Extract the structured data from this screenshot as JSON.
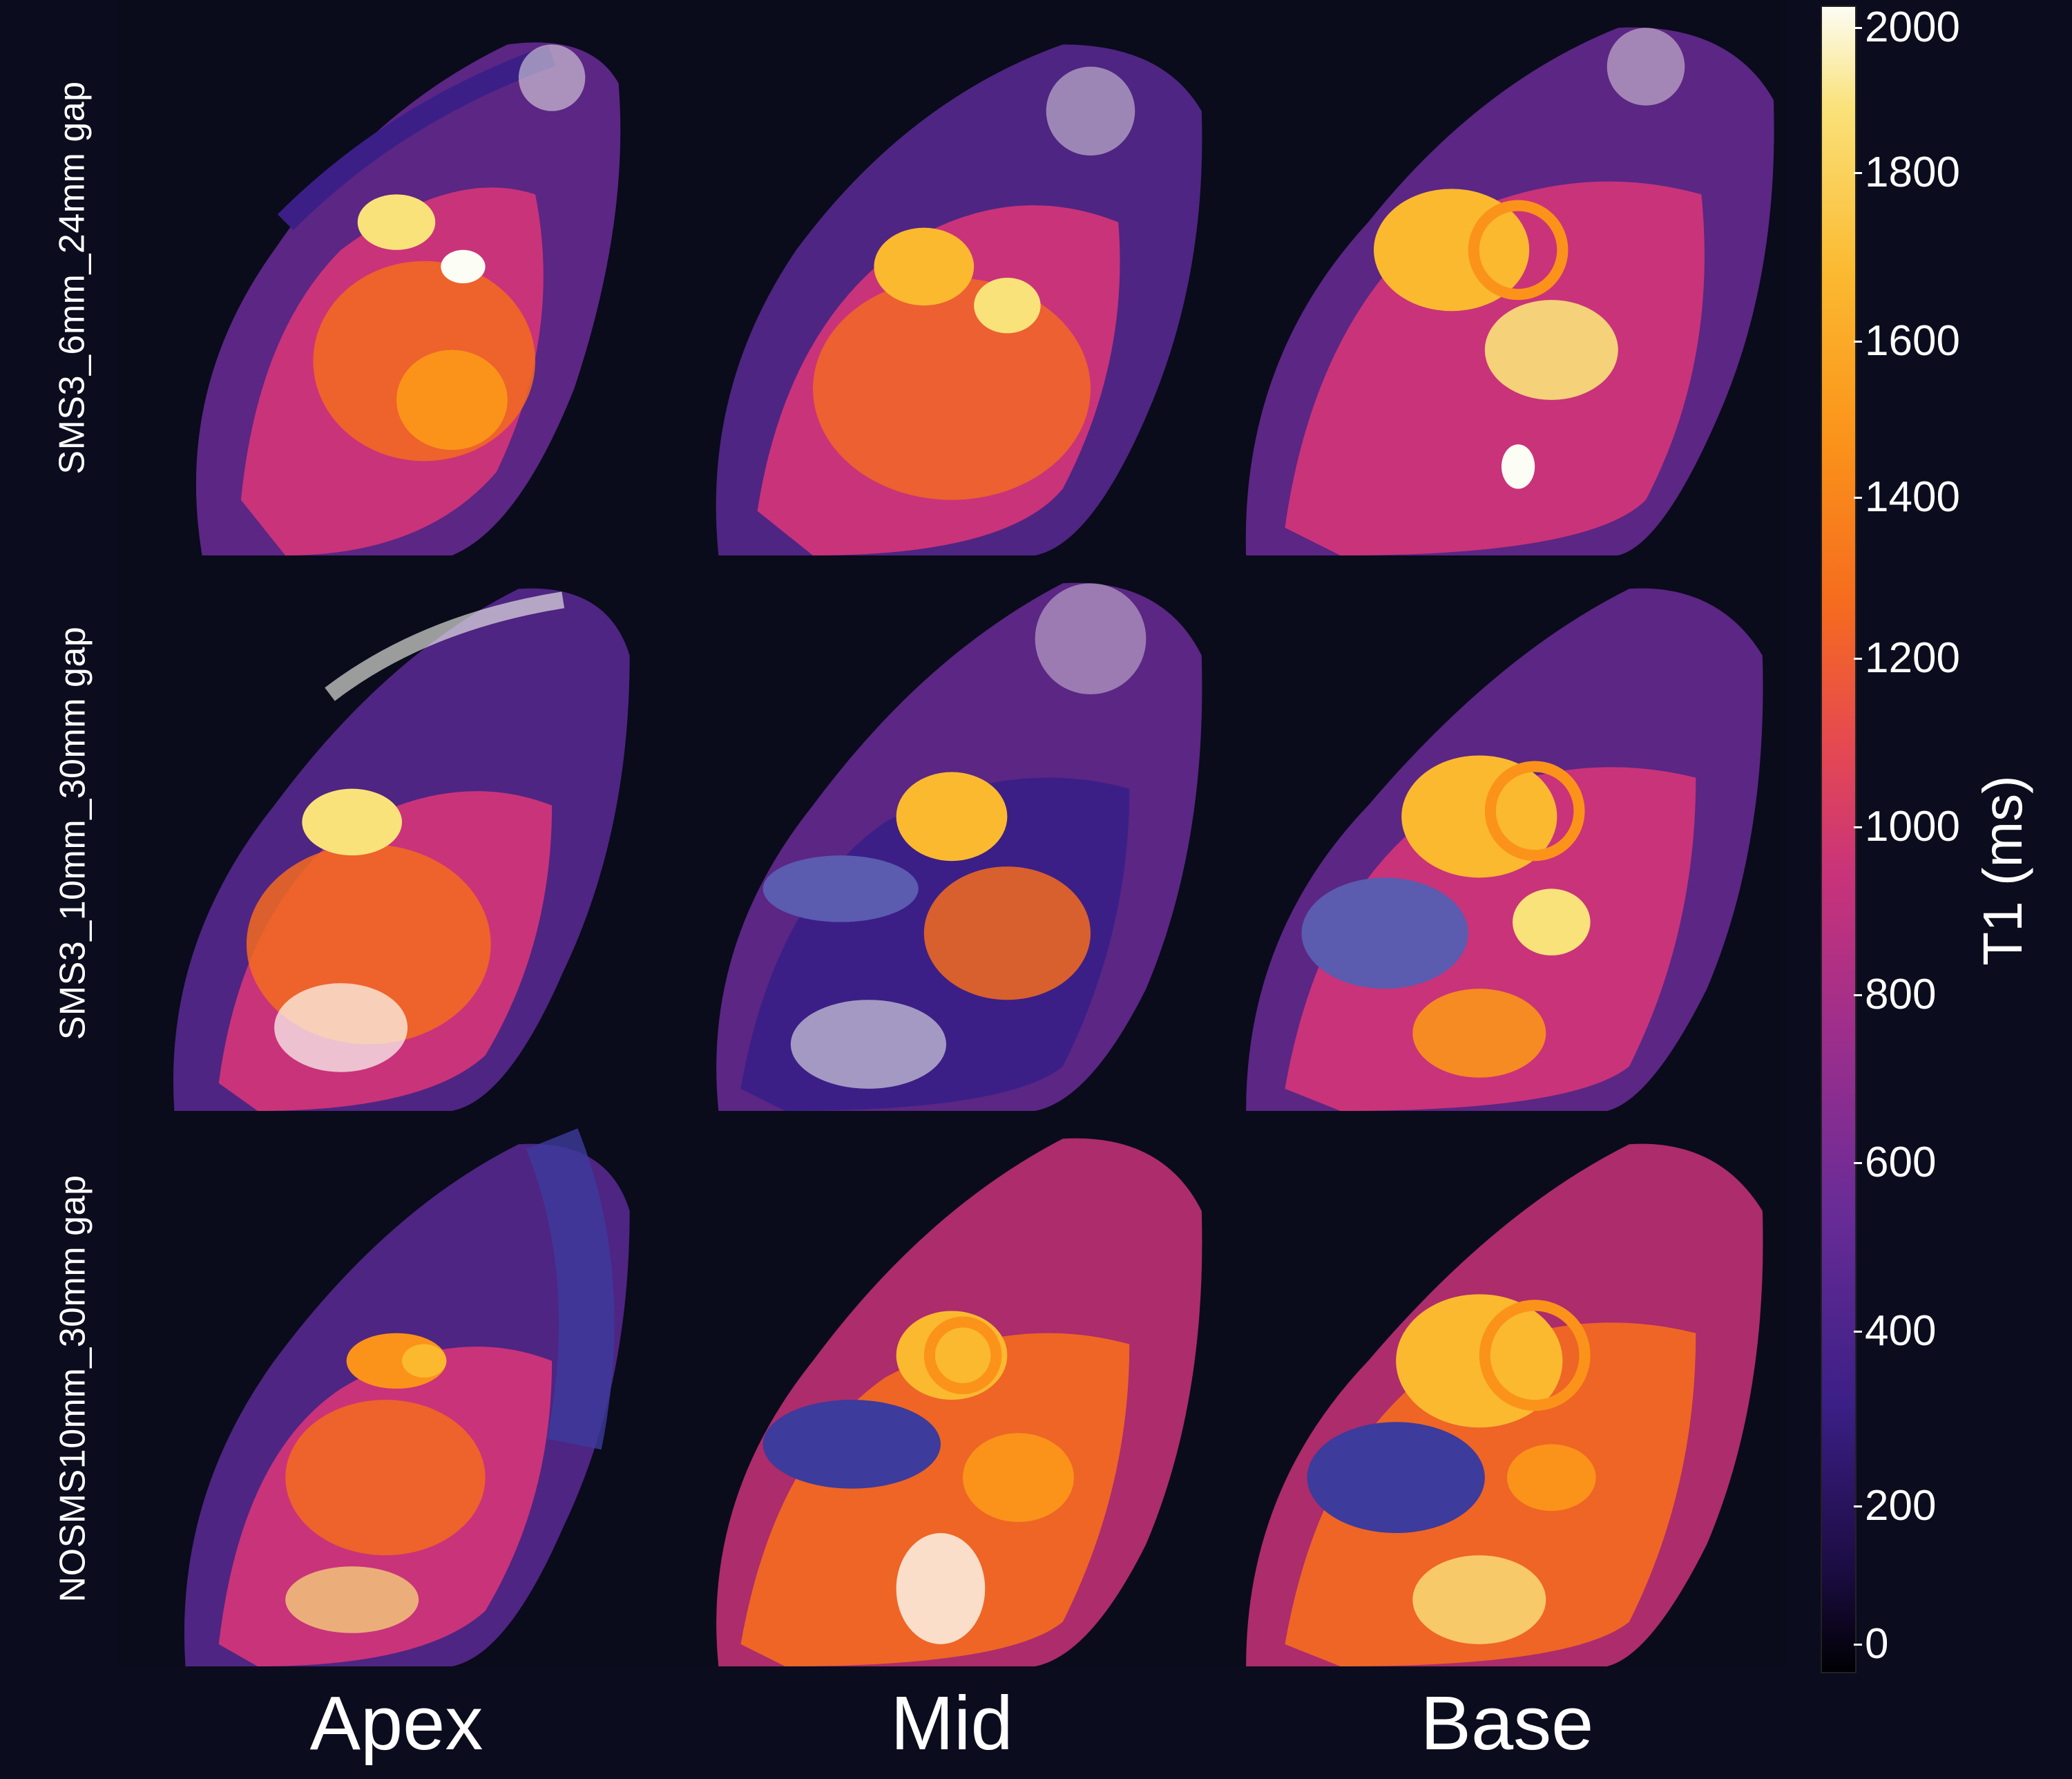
{
  "figure": {
    "row_labels": [
      "SMS3_6mm_24mm gap",
      "SMS3_10mm_30mm gap",
      "NOSMS10mm_30mm gap"
    ],
    "column_labels": [
      "Apex",
      "Mid",
      "Base"
    ],
    "colorbar": {
      "title": "T1 (ms)",
      "min": 0,
      "max": 2000,
      "ticks": [
        "2000",
        "1800",
        "1600",
        "1400",
        "1200",
        "1000",
        "800",
        "600",
        "400",
        "200",
        "0"
      ],
      "colormap": "inferno-like"
    },
    "colors": {
      "background": "#0b0c1d",
      "low": "#3d3b9c",
      "mid": "#c4308a",
      "high": "#f7a21d",
      "peak": "#fff3c0"
    }
  }
}
